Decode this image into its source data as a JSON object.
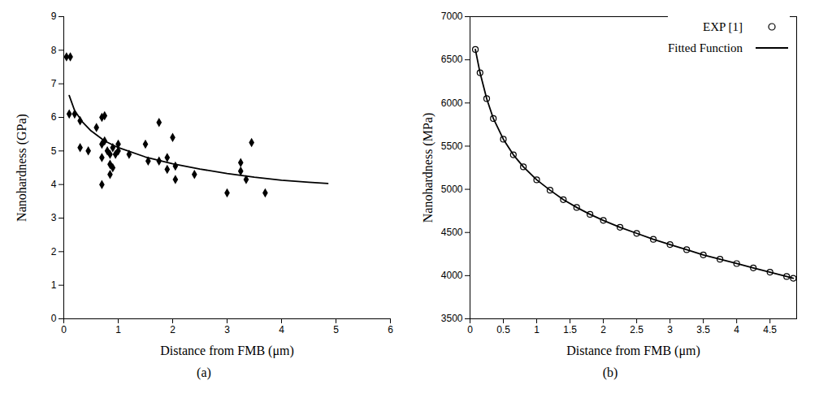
{
  "chart_data": [
    {
      "type": "scatter",
      "panel_label": "(a)",
      "xlabel": "Distance from FMB (μm)",
      "ylabel": "Nanohardness (GPa)",
      "xlim": [
        0,
        6
      ],
      "xticks": [
        0,
        1,
        2,
        3,
        4,
        5,
        6
      ],
      "ylim": [
        0,
        9
      ],
      "yticks": [
        0,
        1,
        2,
        3,
        4,
        5,
        6,
        7,
        8,
        9
      ],
      "grid": false,
      "series": [
        {
          "type": "scatter",
          "marker": "diamond",
          "color": "#000000",
          "x": [
            0.05,
            0.12,
            0.1,
            0.2,
            0.3,
            0.3,
            0.45,
            0.6,
            0.7,
            0.75,
            0.7,
            0.75,
            0.7,
            0.7,
            0.8,
            0.85,
            0.85,
            0.9,
            0.85,
            0.9,
            0.95,
            1.0,
            1.0,
            1.2,
            1.5,
            1.55,
            1.75,
            1.75,
            1.9,
            1.9,
            2.0,
            2.05,
            2.05,
            2.4,
            3.0,
            3.25,
            3.25,
            3.35,
            3.45,
            3.7
          ],
          "values": [
            7.8,
            7.8,
            6.1,
            6.1,
            5.9,
            5.1,
            5.0,
            5.7,
            6.0,
            6.05,
            5.2,
            5.3,
            4.8,
            4.0,
            5.0,
            4.9,
            4.6,
            4.5,
            4.3,
            5.1,
            4.9,
            5.2,
            5.0,
            4.9,
            5.2,
            4.7,
            5.85,
            4.7,
            4.8,
            4.45,
            5.4,
            4.15,
            4.55,
            4.3,
            3.75,
            4.65,
            4.4,
            4.15,
            5.25,
            3.75
          ]
        },
        {
          "type": "line",
          "line_style": "solid",
          "color": "#000000",
          "x": [
            0.1,
            0.2,
            0.35,
            0.5,
            0.75,
            1.0,
            1.5,
            2.0,
            2.5,
            3.0,
            3.5,
            4.0,
            4.5,
            4.85
          ],
          "values": [
            6.65,
            6.2,
            5.85,
            5.6,
            5.3,
            5.1,
            4.82,
            4.62,
            4.46,
            4.33,
            4.22,
            4.13,
            4.07,
            4.03
          ]
        }
      ]
    },
    {
      "type": "line",
      "panel_label": "(b)",
      "xlabel": "Distance from FMB (μm)",
      "ylabel": "Nanohardness (MPa)",
      "xlim": [
        0,
        4.9
      ],
      "xticks": [
        0,
        0.5,
        1,
        1.5,
        2,
        2.5,
        3,
        3.5,
        4,
        4.5
      ],
      "ylim": [
        3500,
        7000
      ],
      "yticks": [
        3500,
        4000,
        4500,
        5000,
        5500,
        6000,
        6500,
        7000
      ],
      "grid": false,
      "legend": "upper right",
      "series": [
        {
          "name": "EXP [1]",
          "type": "scatter",
          "marker": "circle",
          "color": "#000000",
          "x": [
            0.08,
            0.15,
            0.25,
            0.35,
            0.5,
            0.65,
            0.8,
            1.0,
            1.2,
            1.4,
            1.6,
            1.8,
            2.0,
            2.25,
            2.5,
            2.75,
            3.0,
            3.25,
            3.5,
            3.75,
            4.0,
            4.25,
            4.5,
            4.75,
            4.85
          ],
          "values": [
            6620,
            6350,
            6050,
            5820,
            5580,
            5400,
            5260,
            5110,
            4990,
            4880,
            4790,
            4710,
            4640,
            4560,
            4490,
            4420,
            4360,
            4300,
            4240,
            4190,
            4140,
            4090,
            4040,
            3990,
            3970
          ]
        },
        {
          "name": "Fitted Function",
          "type": "line",
          "line_style": "solid",
          "color": "#000000",
          "x": [
            0.08,
            0.15,
            0.25,
            0.35,
            0.5,
            0.65,
            0.8,
            1.0,
            1.2,
            1.4,
            1.6,
            1.8,
            2.0,
            2.25,
            2.5,
            2.75,
            3.0,
            3.25,
            3.5,
            3.75,
            4.0,
            4.25,
            4.5,
            4.75,
            4.85
          ],
          "values": [
            6620,
            6350,
            6050,
            5820,
            5580,
            5400,
            5260,
            5110,
            4990,
            4880,
            4790,
            4710,
            4640,
            4560,
            4490,
            4420,
            4360,
            4300,
            4240,
            4190,
            4140,
            4090,
            4040,
            3990,
            3970
          ]
        }
      ]
    }
  ]
}
